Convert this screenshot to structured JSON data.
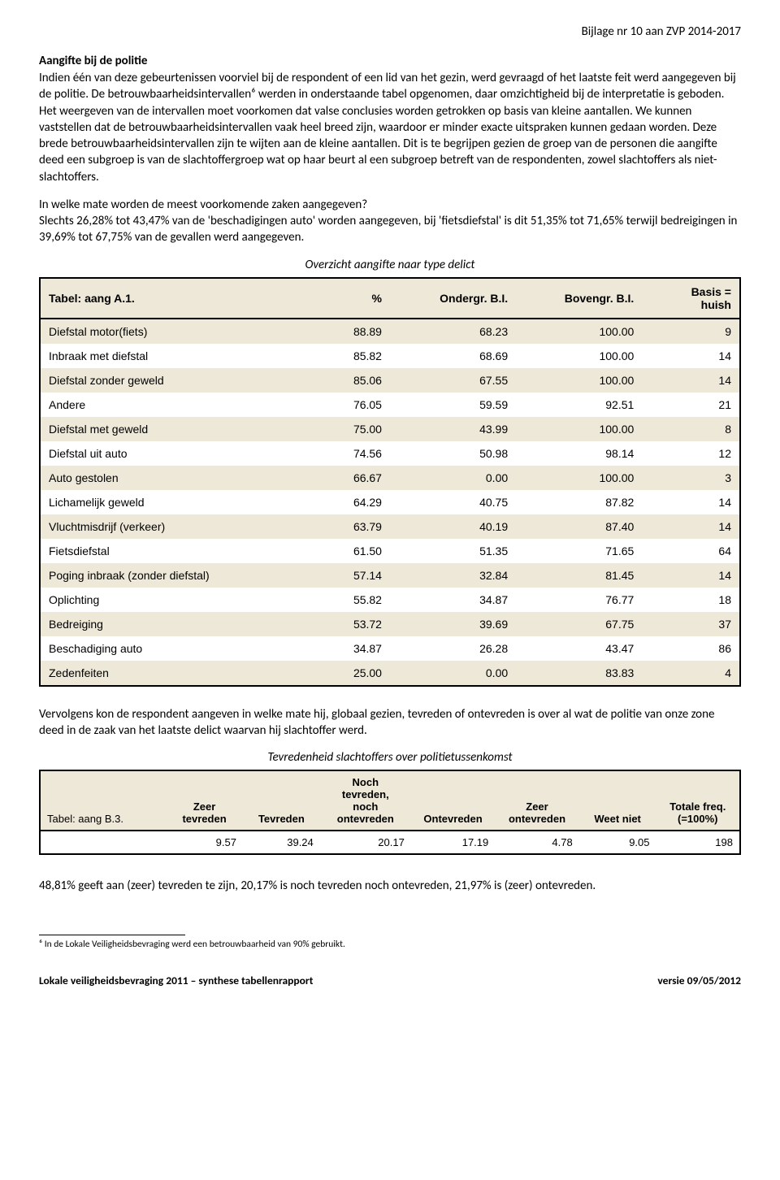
{
  "header": {
    "right": "Bijlage nr 10 aan ZVP 2014-2017"
  },
  "section_title": "Aangifte bij de politie",
  "paragraph1": "Indien één van deze gebeurtenissen voorviel bij de respondent of een lid van het gezin, werd gevraagd of het laatste feit werd aangegeven bij de politie. De betrouwbaarheidsintervallen⁶ werden in onderstaande tabel opgenomen, daar omzichtigheid bij de interpretatie is geboden. Het weergeven van de intervallen moet voorkomen dat valse conclusies worden getrokken op basis van kleine aantallen. We kunnen vaststellen dat de betrouwbaarheidsintervallen vaak heel breed zijn, waardoor er minder exacte uitspraken kunnen gedaan worden. Deze brede betrouwbaarheidsintervallen zijn te wijten aan de kleine aantallen. Dit is te begrijpen gezien de groep van de personen die aangifte deed een subgroep is van de slachtoffergroep wat op haar beurt al een subgroep betreft van de respondenten, zowel slachtoffers als niet-slachtoffers.",
  "paragraph2_line1": "In welke mate worden de meest voorkomende zaken aangegeven?",
  "paragraph2_line2": "Slechts 26,28% tot 43,47% van de 'beschadigingen auto' worden aangegeven, bij 'fietsdiefstal' is dit 51,35% tot 71,65% terwijl bedreigingen in 39,69% tot 67,75% van de gevallen werd aangegeven.",
  "table1_caption": "Overzicht aangifte naar type delict",
  "table1": {
    "headers": [
      "Tabel: aang A.1.",
      "%",
      "Ondergr. B.I.",
      "Bovengr. B.I.",
      "Basis = huish"
    ],
    "rows": [
      [
        "Diefstal motor(fiets)",
        "88.89",
        "68.23",
        "100.00",
        "9"
      ],
      [
        "Inbraak met diefstal",
        "85.82",
        "68.69",
        "100.00",
        "14"
      ],
      [
        "Diefstal zonder geweld",
        "85.06",
        "67.55",
        "100.00",
        "14"
      ],
      [
        "Andere",
        "76.05",
        "59.59",
        "92.51",
        "21"
      ],
      [
        "Diefstal met geweld",
        "75.00",
        "43.99",
        "100.00",
        "8"
      ],
      [
        "Diefstal uit auto",
        "74.56",
        "50.98",
        "98.14",
        "12"
      ],
      [
        "Auto gestolen",
        "66.67",
        "0.00",
        "100.00",
        "3"
      ],
      [
        "Lichamelijk geweld",
        "64.29",
        "40.75",
        "87.82",
        "14"
      ],
      [
        "Vluchtmisdrijf (verkeer)",
        "63.79",
        "40.19",
        "87.40",
        "14"
      ],
      [
        "Fietsdiefstal",
        "61.50",
        "51.35",
        "71.65",
        "64"
      ],
      [
        "Poging inbraak (zonder diefstal)",
        "57.14",
        "32.84",
        "81.45",
        "14"
      ],
      [
        "Oplichting",
        "55.82",
        "34.87",
        "76.77",
        "18"
      ],
      [
        "Bedreiging",
        "53.72",
        "39.69",
        "67.75",
        "37"
      ],
      [
        "Beschadiging auto",
        "34.87",
        "26.28",
        "43.47",
        "86"
      ],
      [
        "Zedenfeiten",
        "25.00",
        "0.00",
        "83.83",
        "4"
      ]
    ],
    "col_widths": [
      "34%",
      "16%",
      "18%",
      "18%",
      "14%"
    ]
  },
  "paragraph3": "Vervolgens kon de respondent aangeven in welke mate hij, globaal gezien, tevreden of ontevreden is over al wat de politie van onze zone deed in de zaak van het laatste delict waarvan hij slachtoffer werd.",
  "table2_caption": "Tevredenheid slachtoffers over politietussenkomst",
  "table2": {
    "headers": [
      "Tabel: aang B.3.",
      "Zeer tevreden",
      "Tevreden",
      "Noch tevreden, noch ontevreden",
      "Ontevreden",
      "Zeer ontevreden",
      "Weet niet",
      "Totale freq. (=100%)"
    ],
    "row": [
      "",
      "9.57",
      "39.24",
      "20.17",
      "17.19",
      "4.78",
      "9.05",
      "198"
    ],
    "col_widths": [
      "18%",
      "11%",
      "11%",
      "13%",
      "12%",
      "12%",
      "11%",
      "12%"
    ]
  },
  "paragraph4": "48,81% geeft aan (zeer) tevreden te zijn, 20,17% is noch tevreden noch ontevreden, 21,97% is (zeer) ontevreden.",
  "footnote": "⁶ In de Lokale Veiligheidsbevraging werd een betrouwbaarheid van 90% gebruikt.",
  "footer": {
    "left": "Lokale veiligheidsbevraging 2011 – synthese tabellenrapport",
    "right": "versie 09/05/2012"
  }
}
